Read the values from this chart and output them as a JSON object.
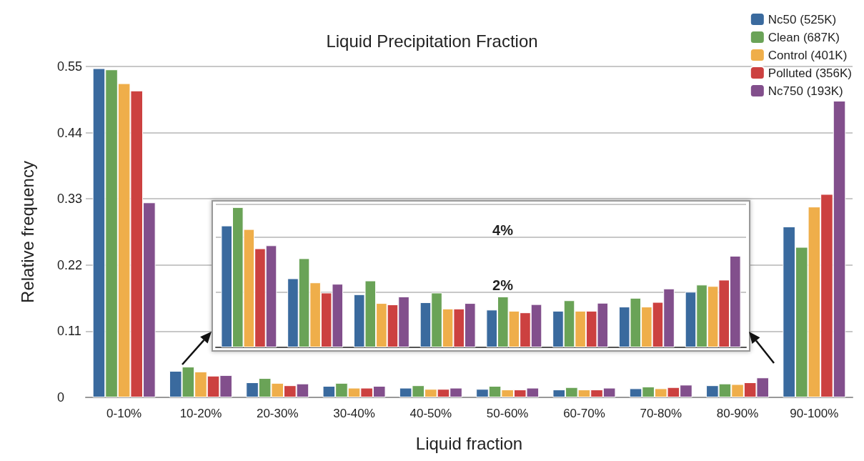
{
  "chart_data": [
    {
      "type": "bar",
      "title": "Liquid Precipitation Fraction",
      "xlabel": "Liquid fraction",
      "ylabel": "Relative frequency",
      "categories": [
        "0-10%",
        "10-20%",
        "20-30%",
        "30-40%",
        "40-50%",
        "50-60%",
        "60-70%",
        "70-80%",
        "80-90%",
        "90-100%"
      ],
      "series": [
        {
          "name": "Nc50 (525K)",
          "color": "#3a6a9e",
          "values": [
            0.547,
            0.044,
            0.025,
            0.019,
            0.016,
            0.014,
            0.013,
            0.015,
            0.02,
            0.284
          ]
        },
        {
          "name": "Clean (687K)",
          "color": "#6aa357",
          "values": [
            0.545,
            0.051,
            0.032,
            0.024,
            0.02,
            0.019,
            0.017,
            0.018,
            0.023,
            0.25
          ]
        },
        {
          "name": "Control (401K)",
          "color": "#efae4a",
          "values": [
            0.522,
            0.043,
            0.024,
            0.016,
            0.014,
            0.013,
            0.013,
            0.015,
            0.022,
            0.317
          ]
        },
        {
          "name": "Polluted (356K)",
          "color": "#cc4140",
          "values": [
            0.51,
            0.036,
            0.02,
            0.016,
            0.014,
            0.013,
            0.013,
            0.017,
            0.025,
            0.338
          ]
        },
        {
          "name": "Nc750 (193K)",
          "color": "#824f8c",
          "values": [
            0.324,
            0.037,
            0.023,
            0.019,
            0.016,
            0.016,
            0.016,
            0.021,
            0.033,
            0.493
          ]
        }
      ],
      "ylim": [
        0,
        0.55
      ],
      "yticks": [
        0,
        0.11,
        0.22,
        0.33,
        0.44,
        0.55
      ],
      "grid": "y",
      "legend": "top right"
    },
    {
      "type": "bar",
      "categories": [
        null,
        null,
        null,
        null,
        null,
        null,
        null,
        null
      ],
      "series": [
        {
          "color": "#3a6a9e",
          "values": [
            4.43,
            2.51,
            1.93,
            1.64,
            1.37,
            1.33,
            1.48,
            2.02
          ]
        },
        {
          "color": "#6aa357",
          "values": [
            5.1,
            3.24,
            2.43,
            1.99,
            1.85,
            1.71,
            1.8,
            2.28
          ]
        },
        {
          "color": "#efae4a",
          "values": [
            4.3,
            2.36,
            1.61,
            1.41,
            1.33,
            1.33,
            1.48,
            2.23
          ]
        },
        {
          "color": "#cc4140",
          "values": [
            3.6,
            1.99,
            1.56,
            1.41,
            1.27,
            1.33,
            1.65,
            2.46
          ]
        },
        {
          "color": "#824f8c",
          "values": [
            3.71,
            2.31,
            1.85,
            1.61,
            1.57,
            1.62,
            2.14,
            3.33
          ]
        }
      ],
      "ylim": [
        0,
        5.2
      ],
      "yticks": [
        {
          "value": 2,
          "label": "2%"
        },
        {
          "value": 4,
          "label": "4%"
        }
      ],
      "grid": "y",
      "tick_labels": "y"
    }
  ]
}
